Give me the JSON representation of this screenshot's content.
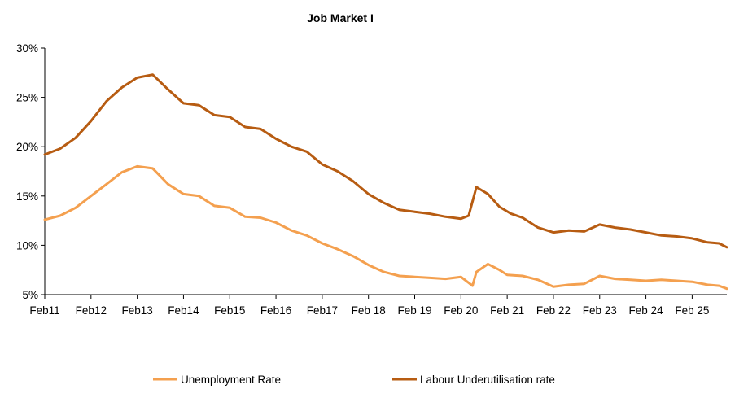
{
  "chart_data": {
    "type": "line",
    "title": "Job Market  I",
    "xlabel": "",
    "ylabel": "",
    "x_tick_labels": [
      "Feb11",
      "Feb12",
      "Feb13",
      "Feb14",
      "Feb15",
      "Feb16",
      "Feb17",
      "Feb 18",
      "Feb 19",
      "Feb 20",
      "Feb 21",
      "Feb 22",
      "Feb 23",
      "Feb 24",
      "Feb 25"
    ],
    "x_range": [
      "2011-02",
      "2025-11"
    ],
    "y_tick_labels": [
      "30%",
      "25%",
      "20%",
      "15%",
      "10%",
      "5%"
    ],
    "ylim": [
      5,
      30
    ],
    "grid": false,
    "legend_position": "bottom",
    "series": [
      {
        "name": "Unemployment Rate",
        "color": "#F4A04F",
        "points": [
          [
            "2011-02",
            12.6
          ],
          [
            "2011-06",
            13.0
          ],
          [
            "2011-10",
            13.8
          ],
          [
            "2012-02",
            15.0
          ],
          [
            "2012-06",
            16.2
          ],
          [
            "2012-10",
            17.4
          ],
          [
            "2013-02",
            18.0
          ],
          [
            "2013-06",
            17.8
          ],
          [
            "2013-10",
            16.2
          ],
          [
            "2014-02",
            15.2
          ],
          [
            "2014-06",
            15.0
          ],
          [
            "2014-10",
            14.0
          ],
          [
            "2015-02",
            13.8
          ],
          [
            "2015-06",
            12.9
          ],
          [
            "2015-10",
            12.8
          ],
          [
            "2016-02",
            12.3
          ],
          [
            "2016-06",
            11.5
          ],
          [
            "2016-10",
            11.0
          ],
          [
            "2017-02",
            10.2
          ],
          [
            "2017-06",
            9.6
          ],
          [
            "2017-10",
            8.9
          ],
          [
            "2018-02",
            8.0
          ],
          [
            "2018-06",
            7.3
          ],
          [
            "2018-10",
            6.9
          ],
          [
            "2019-02",
            6.8
          ],
          [
            "2019-06",
            6.7
          ],
          [
            "2019-10",
            6.6
          ],
          [
            "2020-02",
            6.8
          ],
          [
            "2020-05",
            5.9
          ],
          [
            "2020-06",
            7.3
          ],
          [
            "2020-09",
            8.1
          ],
          [
            "2020-12",
            7.5
          ],
          [
            "2021-02",
            7.0
          ],
          [
            "2021-06",
            6.9
          ],
          [
            "2021-10",
            6.5
          ],
          [
            "2022-02",
            5.8
          ],
          [
            "2022-06",
            6.0
          ],
          [
            "2022-10",
            6.1
          ],
          [
            "2023-02",
            6.9
          ],
          [
            "2023-06",
            6.6
          ],
          [
            "2023-10",
            6.5
          ],
          [
            "2024-02",
            6.4
          ],
          [
            "2024-06",
            6.5
          ],
          [
            "2024-10",
            6.4
          ],
          [
            "2025-02",
            6.3
          ],
          [
            "2025-06",
            6.0
          ],
          [
            "2025-09",
            5.9
          ],
          [
            "2025-11",
            5.6
          ]
        ]
      },
      {
        "name": "Labour Underutilisation rate",
        "color": "#B75C12",
        "points": [
          [
            "2011-02",
            19.2
          ],
          [
            "2011-06",
            19.8
          ],
          [
            "2011-10",
            20.9
          ],
          [
            "2012-02",
            22.6
          ],
          [
            "2012-06",
            24.6
          ],
          [
            "2012-10",
            26.0
          ],
          [
            "2013-02",
            27.0
          ],
          [
            "2013-06",
            27.3
          ],
          [
            "2013-10",
            25.8
          ],
          [
            "2014-02",
            24.4
          ],
          [
            "2014-06",
            24.2
          ],
          [
            "2014-10",
            23.2
          ],
          [
            "2015-02",
            23.0
          ],
          [
            "2015-06",
            22.0
          ],
          [
            "2015-10",
            21.8
          ],
          [
            "2016-02",
            20.8
          ],
          [
            "2016-06",
            20.0
          ],
          [
            "2016-10",
            19.5
          ],
          [
            "2017-02",
            18.2
          ],
          [
            "2017-06",
            17.5
          ],
          [
            "2017-10",
            16.5
          ],
          [
            "2018-02",
            15.2
          ],
          [
            "2018-06",
            14.3
          ],
          [
            "2018-10",
            13.6
          ],
          [
            "2019-02",
            13.4
          ],
          [
            "2019-06",
            13.2
          ],
          [
            "2019-10",
            12.9
          ],
          [
            "2020-02",
            12.7
          ],
          [
            "2020-04",
            13.0
          ],
          [
            "2020-06",
            15.9
          ],
          [
            "2020-09",
            15.2
          ],
          [
            "2020-12",
            13.9
          ],
          [
            "2021-03",
            13.2
          ],
          [
            "2021-06",
            12.8
          ],
          [
            "2021-10",
            11.8
          ],
          [
            "2022-02",
            11.3
          ],
          [
            "2022-06",
            11.5
          ],
          [
            "2022-10",
            11.4
          ],
          [
            "2023-02",
            12.1
          ],
          [
            "2023-06",
            11.8
          ],
          [
            "2023-10",
            11.6
          ],
          [
            "2024-02",
            11.3
          ],
          [
            "2024-06",
            11.0
          ],
          [
            "2024-10",
            10.9
          ],
          [
            "2025-02",
            10.7
          ],
          [
            "2025-06",
            10.3
          ],
          [
            "2025-09",
            10.2
          ],
          [
            "2025-11",
            9.8
          ]
        ]
      }
    ]
  }
}
